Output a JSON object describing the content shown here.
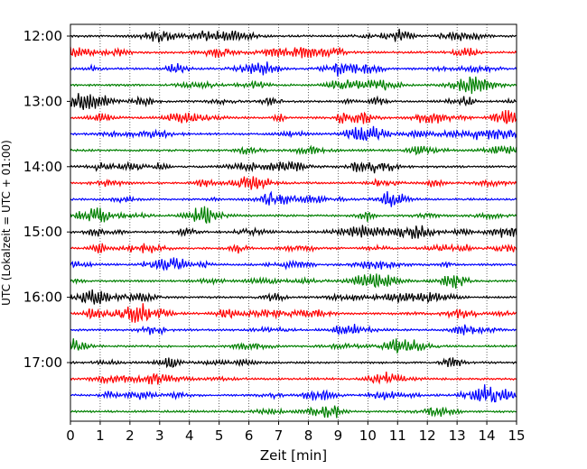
{
  "chart_data": {
    "type": "line",
    "title": "",
    "xlabel": "Zeit  [min]",
    "ylabel": "UTC (Lokalzeit = UTC + 01:00)",
    "xlim": [
      0,
      15
    ],
    "x_ticks": [
      "0",
      "1",
      "2",
      "3",
      "4",
      "5",
      "6",
      "7",
      "8",
      "9",
      "10",
      "11",
      "12",
      "13",
      "14",
      "15"
    ],
    "y_ticks": [
      "12:00",
      "13:00",
      "14:00",
      "15:00",
      "16:00",
      "17:00"
    ],
    "trace_interval_minutes": 15,
    "start_time": "12:00",
    "trace_count": 24,
    "grid": "vertical dotted",
    "trace_colors": [
      "#000000",
      "#ff0000",
      "#0000ff",
      "#008000"
    ]
  }
}
